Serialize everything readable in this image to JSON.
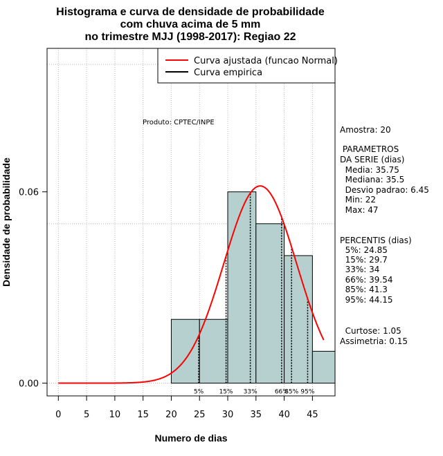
{
  "chart_data": {
    "type": "bar",
    "title_lines": [
      "Histograma e curva de densidade de probabilidade",
      "com chuva acima de 5 mm",
      "no trimestre MJJ (1998-2017): Regiao 22"
    ],
    "xlabel": "Numero de dias",
    "ylabel": "Densidade de probabilidade",
    "xlim": [
      -2,
      49
    ],
    "ylim": [
      -0.004,
      0.105
    ],
    "x_ticks": [
      0,
      5,
      10,
      15,
      20,
      25,
      30,
      35,
      40,
      45
    ],
    "y_ticks": [
      0.0,
      0.06
    ],
    "y_tick_labels": [
      "0.00",
      "0.06"
    ],
    "grid_x": [
      0,
      5,
      10,
      15,
      20,
      25,
      30,
      35,
      40,
      45
    ],
    "grid_y": [
      0.0,
      0.05,
      0.1
    ],
    "histogram": [
      {
        "x0": 20,
        "x1": 25,
        "density": 0.02
      },
      {
        "x0": 25,
        "x1": 30,
        "density": 0.02
      },
      {
        "x0": 30,
        "x1": 35,
        "density": 0.06
      },
      {
        "x0": 35,
        "x1": 40,
        "density": 0.05
      },
      {
        "x0": 40,
        "x1": 45,
        "density": 0.04
      },
      {
        "x0": 45,
        "x1": 50,
        "density": 0.01
      }
    ],
    "normal_fit": {
      "mean": 35.75,
      "sd": 6.45,
      "x_from": 0,
      "x_to": 47
    },
    "percentile_markers": [
      {
        "label": "5%",
        "x": 24.85
      },
      {
        "label": "15%",
        "x": 29.7
      },
      {
        "label": "33%",
        "x": 34
      },
      {
        "label": "66%",
        "x": 39.54
      },
      {
        "label": "85%",
        "x": 41.3
      },
      {
        "label": "95%",
        "x": 44.15
      }
    ],
    "legend": [
      {
        "label": "Curva ajustada (funcao Normal)",
        "color": "#ff0000"
      },
      {
        "label": "Curva empirica",
        "color": "#000000"
      }
    ],
    "legend_position": "top-right",
    "annotation": "Produto: CPTEC/INPE",
    "bar_color": "#b6cfcf",
    "curve_color": "#ff0000"
  },
  "side_panel": {
    "lines": [
      "Amostra: 20",
      " PARAMETROS",
      "DA SERIE (dias)",
      "  Media: 35.75",
      "  Mediana: 35.5",
      "  Desvio padrao: 6.45",
      "  Min: 22",
      "  Max: 47",
      "PERCENTIS (dias)",
      "  5%: 24.85",
      "  15%: 29.7",
      "  33%: 34",
      "  66%: 39.54",
      "  85%: 41.3",
      "  95%: 44.15",
      "  Curtose: 1.05",
      "Assimetria: 0.15"
    ]
  }
}
